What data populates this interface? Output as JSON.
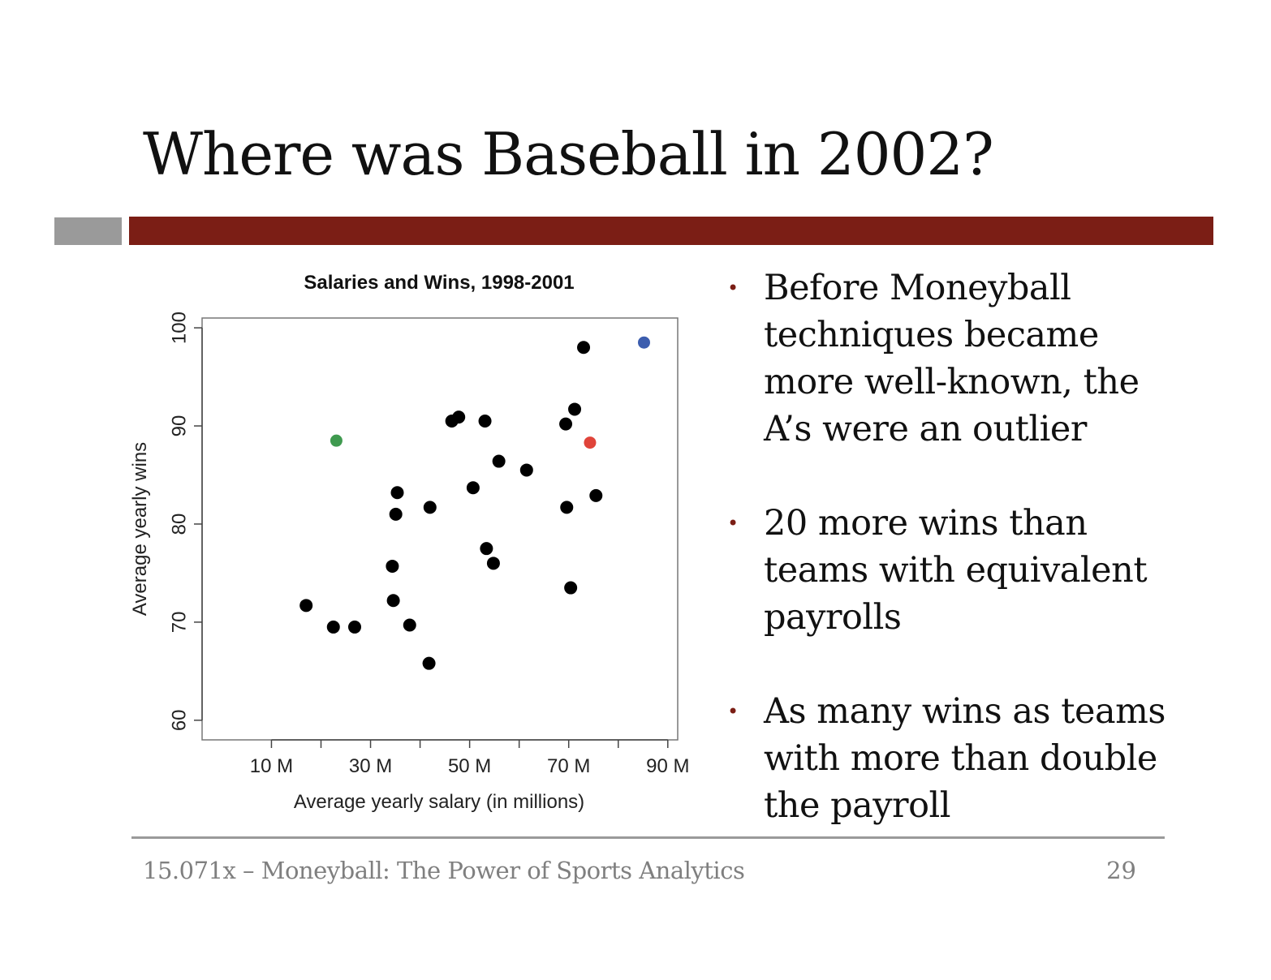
{
  "slide": {
    "title": "Where was Baseball in 2002?",
    "bullets": [
      {
        "lines": [
          "Before Moneyball",
          "techniques became",
          "more well-known, the",
          "A’s were an outlier"
        ]
      },
      {
        "lines": [
          "20 more wins than",
          "teams with equivalent",
          "payrolls"
        ]
      },
      {
        "lines": [
          "As many wins as teams",
          "with more than double",
          "the payroll"
        ]
      }
    ],
    "footer": "15.071x – Moneyball: The Power of Sports Analytics",
    "page_number": "29"
  },
  "colors": {
    "accent_bar": "#7b1e15",
    "gray_bar": "#9a9a9a",
    "highlight_green": "#3f9a4f",
    "highlight_red": "#e0443a",
    "highlight_blue": "#3c5dae",
    "points": "#000000"
  },
  "chart_data": {
    "type": "scatter",
    "title": "Salaries and Wins, 1998-2001",
    "xlabel": "Average yearly salary (in millions)",
    "ylabel": "Average yearly wins",
    "xlim": [
      -4,
      92
    ],
    "ylim": [
      58,
      101
    ],
    "xticks": [
      10,
      20,
      30,
      40,
      50,
      60,
      70,
      80,
      90
    ],
    "xtick_labels": [
      "10 M",
      "",
      "30 M",
      "",
      "50 M",
      "",
      "70 M",
      "",
      "90 M"
    ],
    "yticks": [
      60,
      70,
      80,
      90,
      100
    ],
    "ytick_labels": [
      "60",
      "70",
      "80",
      "90",
      "100"
    ],
    "grid": false,
    "points": [
      {
        "x": 17.0,
        "y": 71.7
      },
      {
        "x": 22.5,
        "y": 69.5
      },
      {
        "x": 26.8,
        "y": 69.5
      },
      {
        "x": 34.4,
        "y": 75.7
      },
      {
        "x": 34.6,
        "y": 72.2
      },
      {
        "x": 35.1,
        "y": 81.0
      },
      {
        "x": 35.4,
        "y": 83.2
      },
      {
        "x": 37.9,
        "y": 69.7
      },
      {
        "x": 41.8,
        "y": 65.8
      },
      {
        "x": 42.0,
        "y": 81.7
      },
      {
        "x": 46.4,
        "y": 90.5
      },
      {
        "x": 47.8,
        "y": 90.9
      },
      {
        "x": 50.7,
        "y": 83.7
      },
      {
        "x": 53.1,
        "y": 90.5
      },
      {
        "x": 53.4,
        "y": 77.5
      },
      {
        "x": 54.8,
        "y": 76.0
      },
      {
        "x": 55.9,
        "y": 86.4
      },
      {
        "x": 61.5,
        "y": 85.5
      },
      {
        "x": 69.4,
        "y": 90.2
      },
      {
        "x": 69.6,
        "y": 81.7
      },
      {
        "x": 70.4,
        "y": 73.5
      },
      {
        "x": 71.2,
        "y": 91.7
      },
      {
        "x": 73.0,
        "y": 98.0
      },
      {
        "x": 75.5,
        "y": 82.9
      },
      {
        "x": 23.1,
        "y": 88.5,
        "color": "#3f9a4f"
      },
      {
        "x": 74.3,
        "y": 88.3,
        "color": "#e0443a"
      },
      {
        "x": 85.2,
        "y": 98.5,
        "color": "#3c5dae"
      }
    ]
  }
}
